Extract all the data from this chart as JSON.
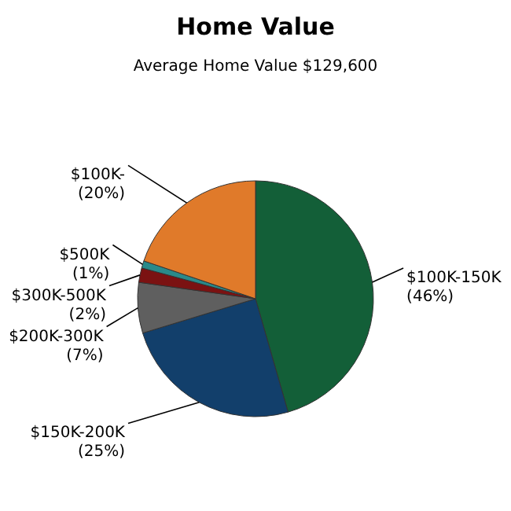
{
  "chart_data": {
    "type": "pie",
    "title": "Home Value",
    "subtitle": "Average Home Value  $129,600",
    "categories": [
      "$100K-150K",
      "$150K-200K",
      "$200K-300K",
      "$300K-500K",
      "$500K",
      "$100K-"
    ],
    "values": [
      46,
      25,
      7,
      2,
      1,
      20
    ],
    "value_labels": [
      "(46%)",
      "(25%)",
      "(7%)",
      "(2%)",
      "(1%)",
      "(20%)"
    ],
    "colors": [
      "#135f38",
      "#123f6b",
      "#5f5f5f",
      "#7b1212",
      "#2a8a8a",
      "#e07a2a"
    ],
    "legend": false
  }
}
